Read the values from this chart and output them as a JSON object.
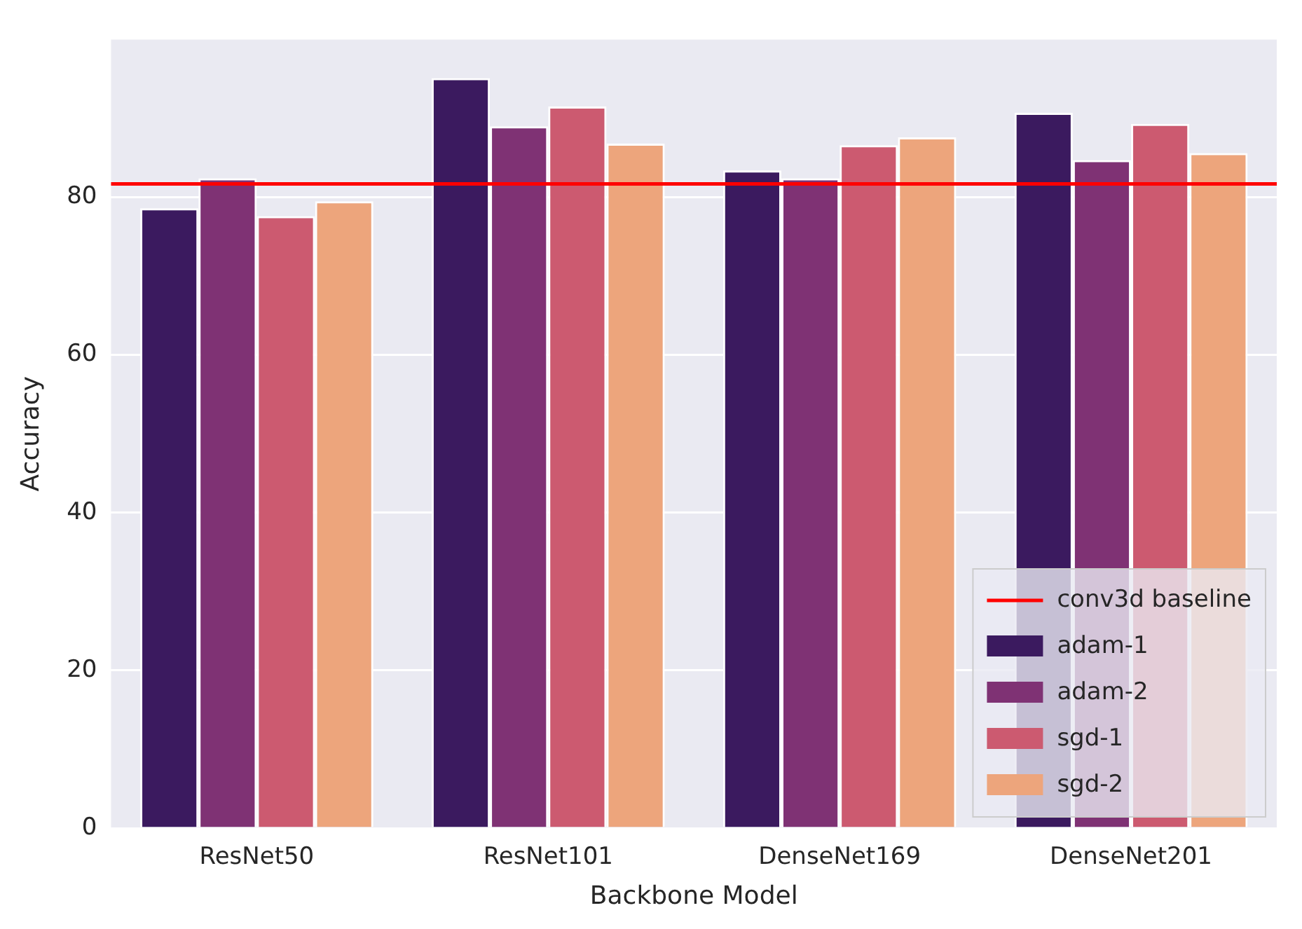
{
  "chart_data": {
    "type": "bar",
    "xlabel": "Backbone Model",
    "ylabel": "Accuracy",
    "categories": [
      "ResNet50",
      "ResNet101",
      "DenseNet169",
      "DenseNet201"
    ],
    "series": [
      {
        "name": "adam-1",
        "color": "#3b1a5f",
        "values": [
          78.6,
          95.1,
          83.4,
          90.7
        ]
      },
      {
        "name": "adam-2",
        "color": "#7f3274",
        "values": [
          82.4,
          89.0,
          82.4,
          84.7
        ]
      },
      {
        "name": "sgd-1",
        "color": "#cc5a70",
        "values": [
          77.6,
          91.5,
          86.6,
          89.3
        ]
      },
      {
        "name": "sgd-2",
        "color": "#eda57c",
        "values": [
          79.5,
          86.8,
          87.6,
          85.6
        ]
      }
    ],
    "ylim": [
      0,
      100
    ],
    "yticks": [
      0,
      20,
      40,
      60,
      80
    ],
    "grid": "y",
    "legend": "bottom right",
    "ref_lines": [
      {
        "axis": "y",
        "value": 81.7,
        "label": "conv3d baseline",
        "color": "#ff0000",
        "line_style": "solid"
      }
    ]
  }
}
